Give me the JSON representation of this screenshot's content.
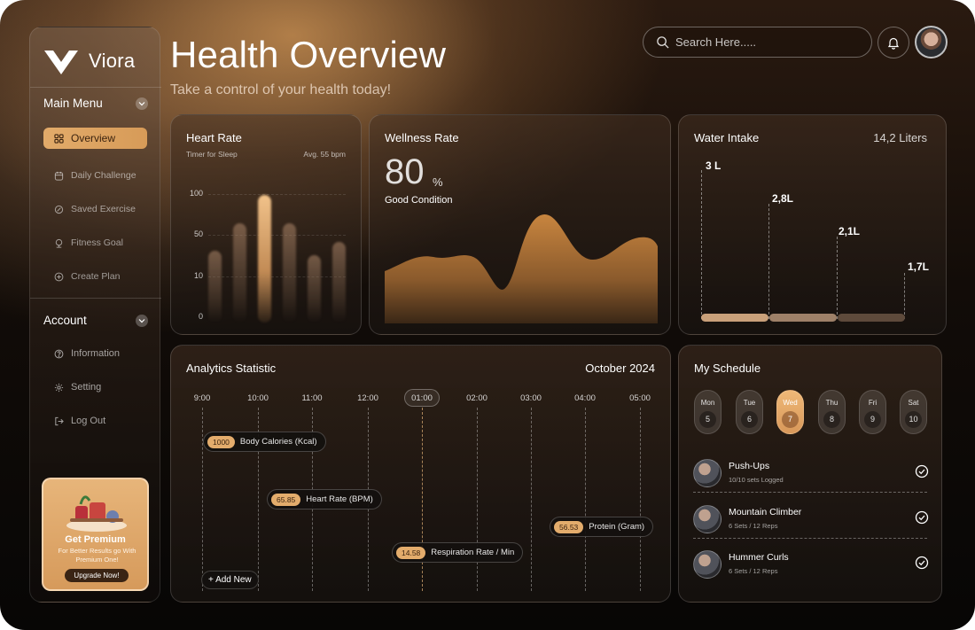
{
  "app": {
    "brand": "Viora"
  },
  "header": {
    "title": "Health Overview",
    "subtitle": "Take a control of your health today!",
    "search_placeholder": "Search Here....."
  },
  "sidebar": {
    "main_menu_label": "Main Menu",
    "main_items": [
      {
        "label": "Overview",
        "icon": "grid-icon",
        "active": true
      },
      {
        "label": "Daily Challenge",
        "icon": "calendar-icon"
      },
      {
        "label": "Saved Exercise",
        "icon": "bookmark-icon"
      },
      {
        "label": "Fitness Goal",
        "icon": "trophy-icon"
      },
      {
        "label": "Create Plan",
        "icon": "plus-circle-icon"
      }
    ],
    "account_label": "Account",
    "account_items": [
      {
        "label": "Information",
        "icon": "question-circle-icon"
      },
      {
        "label": "Setting",
        "icon": "gear-icon"
      },
      {
        "label": "Log Out",
        "icon": "logout-icon"
      }
    ],
    "premium": {
      "title": "Get Premium",
      "subtitle": "For Better Results go With Premium One!",
      "button": "Upgrade Now!"
    }
  },
  "heart_rate": {
    "title": "Heart Rate",
    "subtitle": "Timer for Sleep",
    "average": "Avg. 55 bpm",
    "axis": [
      "100",
      "50",
      "10",
      "0"
    ],
    "bars": [
      0.49,
      0.68,
      0.87,
      0.68,
      0.46,
      0.55
    ],
    "highlight_index": 2
  },
  "wellness": {
    "title": "Wellness Rate",
    "value": "80",
    "unit": "%",
    "status": "Good Condition"
  },
  "water": {
    "title": "Water Intake",
    "total": "14,2 Liters",
    "values": [
      "3 L",
      "2,8L",
      "2,1L",
      "1,7L"
    ]
  },
  "analytics": {
    "title": "Analytics Statistic",
    "period": "October 2024",
    "times": [
      "9:00",
      "10:00",
      "11:00",
      "12:00",
      "01:00",
      "02:00",
      "03:00",
      "04:00",
      "05:00"
    ],
    "selected_time": "01:00",
    "metrics": [
      {
        "value": "1000",
        "label": "Body Calories (Kcal)"
      },
      {
        "value": "65.85",
        "label": "Heart Rate (BPM)"
      },
      {
        "value": "56.53",
        "label": "Protein (Gram)"
      },
      {
        "value": "14.58",
        "label": "Respiration Rate / Min"
      }
    ],
    "add_label": "+ Add New"
  },
  "schedule": {
    "title": "My Schedule",
    "days": [
      {
        "name": "Mon",
        "date": "5"
      },
      {
        "name": "Tue",
        "date": "6"
      },
      {
        "name": "Wed",
        "date": "7",
        "active": true
      },
      {
        "name": "Thu",
        "date": "8"
      },
      {
        "name": "Fri",
        "date": "9"
      },
      {
        "name": "Sat",
        "date": "10"
      }
    ],
    "exercises": [
      {
        "name": "Push-Ups",
        "detail": "10/10 sets Logged"
      },
      {
        "name": "Mountain Climber",
        "detail": "6 Sets / 12 Reps"
      },
      {
        "name": "Hummer Curls",
        "detail": "6 Sets / 12 Reps"
      }
    ]
  },
  "colors": {
    "accent": "#e2ab6a",
    "accent_dark": "#3b230f",
    "background": "#120c08"
  }
}
